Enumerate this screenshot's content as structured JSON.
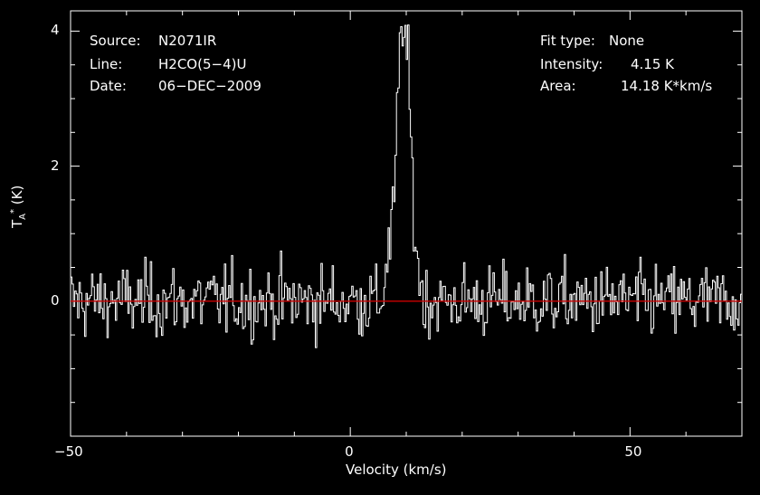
{
  "header": {
    "left": [
      {
        "key": "Source:",
        "value": "N2071IR"
      },
      {
        "key": "Line:",
        "value": "H2CO(5−4)U"
      },
      {
        "key": "Date:",
        "value": "06−DEC−2009"
      }
    ],
    "right": [
      {
        "key": "Fit type:",
        "value": "None"
      },
      {
        "key": "Intensity:",
        "value": "4.15 K"
      },
      {
        "key": "Area:",
        "value": "14.18 K*km/s"
      }
    ]
  },
  "chart_data": {
    "type": "line",
    "style": "histogram-step",
    "xlabel": "Velocity (km/s)",
    "ylabel": "T_A* (K)",
    "xlim": [
      -50,
      70
    ],
    "ylim": [
      -2,
      4.3
    ],
    "x_ticks": [
      -50,
      0,
      50
    ],
    "x_tick_labels": [
      "−50",
      "0",
      "50"
    ],
    "y_ticks": [
      0,
      2,
      4
    ],
    "y_tick_labels": [
      "0",
      "2",
      "4"
    ],
    "baseline": {
      "y": 0,
      "color": "#cc0000"
    },
    "line_color": "#ffffff",
    "grid": false,
    "noise_rms": 0.38,
    "peak": {
      "x": 9.5,
      "y": 4.15
    },
    "line_profile": {
      "x": [
        6,
        7,
        8,
        8.5,
        9,
        9.5,
        10,
        10.5,
        11,
        11.5,
        12,
        12.5,
        13
      ],
      "y": [
        0.4,
        0.8,
        1.6,
        3.0,
        3.9,
        4.15,
        3.8,
        3.2,
        2.0,
        1.1,
        0.6,
        0.3,
        0.1
      ]
    }
  }
}
